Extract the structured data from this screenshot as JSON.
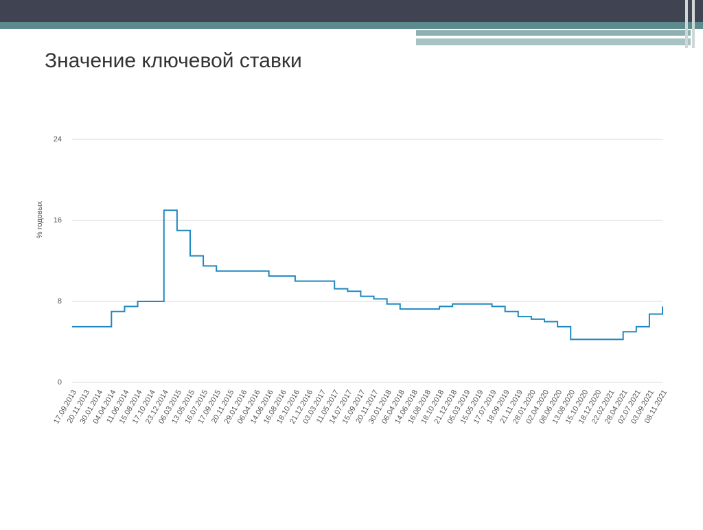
{
  "chart_data": {
    "type": "line",
    "title": "Значение ключевой ставки",
    "y_label": "% годовых",
    "categories": [
      "17.09.2013",
      "20.11.2013",
      "30.01.2014",
      "04.04.2014",
      "11.06.2014",
      "15.08.2014",
      "17.10.2014",
      "23.12.2014",
      "06.03.2015",
      "13.05.2015",
      "16.07.2015",
      "17.09.2015",
      "20.11.2015",
      "29.01.2016",
      "06.04.2016",
      "14.06.2016",
      "16.08.2016",
      "18.10.2016",
      "21.12.2016",
      "03.03.2017",
      "11.05.2017",
      "14.07.2017",
      "15.09.2017",
      "20.11.2017",
      "30.01.2018",
      "06.04.2018",
      "14.06.2018",
      "16.08.2018",
      "18.10.2018",
      "21.12.2018",
      "05.03.2019",
      "15.05.2019",
      "17.07.2019",
      "18.09.2019",
      "21.11.2019",
      "28.01.2020",
      "02.04.2020",
      "08.06.2020",
      "13.08.2020",
      "15.10.2020",
      "18.12.2020",
      "22.02.2021",
      "28.04.2021",
      "02.07.2021",
      "03.09.2021",
      "08.11.2021"
    ],
    "values": [
      5.5,
      5.5,
      5.5,
      7,
      7.5,
      8,
      8,
      17,
      15,
      12.5,
      11.5,
      11,
      11,
      11,
      11,
      10.5,
      10.5,
      10,
      10,
      10,
      9.25,
      9,
      8.5,
      8.25,
      7.75,
      7.25,
      7.25,
      7.25,
      7.5,
      7.75,
      7.75,
      7.75,
      7.5,
      7,
      6.5,
      6.25,
      6,
      5.5,
      4.25,
      4.25,
      4.25,
      4.25,
      5,
      5.5,
      6.75,
      7.5
    ],
    "color": "#1e88c0",
    "step": true,
    "ylim": [
      0,
      24
    ],
    "yticks": [
      0,
      8,
      16,
      24
    ],
    "grid": true
  }
}
